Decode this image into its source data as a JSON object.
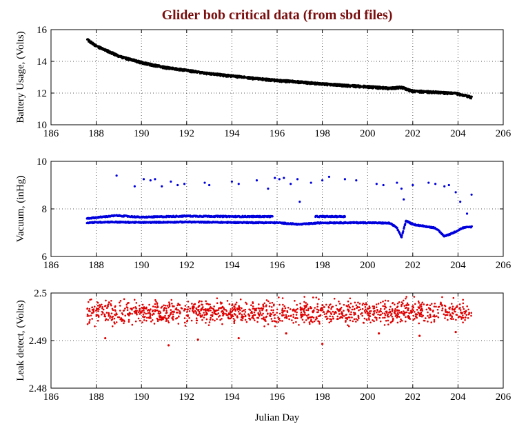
{
  "colors": {
    "title": "#7a0f0f",
    "battery": "#000000",
    "vacuum": "#0000dd",
    "leak": "#e00000",
    "grid": "#555555",
    "axis": "#000000"
  },
  "chart_data": {
    "type": "scatter",
    "title": "Glider bob critical data (from sbd files)",
    "xlabel": "Julian Day",
    "xlim": [
      186,
      206
    ],
    "xticks": [
      186,
      188,
      190,
      192,
      194,
      196,
      198,
      200,
      202,
      204,
      206
    ],
    "grid": true,
    "panels": [
      {
        "id": "battery",
        "ylabel": "Battery Usage, (Volts)",
        "ylim": [
          10,
          16
        ],
        "yticks": [
          10,
          12,
          14,
          16
        ],
        "ytick_labels": [
          "10",
          "12",
          "14",
          "16"
        ],
        "series": [
          {
            "name": "battery",
            "style": "dense dotted band",
            "x": [
              187.6,
              187.8,
              188.0,
              188.3,
              188.7,
              189.0,
              189.5,
              190.0,
              190.5,
              191.0,
              192.0,
              193.0,
              194.0,
              195.0,
              196.0,
              197.0,
              198.0,
              199.0,
              200.0,
              201.0,
              201.5,
              201.8,
              202.0,
              203.0,
              204.0,
              204.6
            ],
            "y": [
              15.4,
              15.2,
              15.0,
              14.8,
              14.55,
              14.35,
              14.15,
              13.95,
              13.8,
              13.65,
              13.45,
              13.25,
              13.1,
              12.95,
              12.82,
              12.72,
              12.6,
              12.5,
              12.42,
              12.32,
              12.4,
              12.22,
              12.15,
              12.08,
              11.98,
              11.75
            ]
          }
        ]
      },
      {
        "id": "vacuum",
        "ylabel": "Vacuum, (inHg)",
        "ylim": [
          6,
          10
        ],
        "yticks": [
          6,
          8,
          10
        ],
        "ytick_labels": [
          "6",
          "8",
          "10"
        ],
        "series": [
          {
            "name": "vacuum-upper-band",
            "style": "dense dotted band",
            "x": [
              187.6,
              188.9,
              190.0,
              192.0,
              194.0,
              195.8
            ],
            "y": [
              7.6,
              7.72,
              7.65,
              7.7,
              7.68,
              7.68
            ]
          },
          {
            "name": "vacuum-upper-band-2",
            "style": "dense dotted band",
            "x": [
              197.7,
              199.0
            ],
            "y": [
              7.68,
              7.68
            ]
          },
          {
            "name": "vacuum-lower-band",
            "style": "dense dotted band",
            "x": [
              187.6,
              188.5,
              190.0,
              192.0,
              194.0,
              196.0,
              197.0,
              198.0,
              200.0,
              201.0,
              201.3,
              201.5,
              201.7,
              202.0,
              203.0,
              203.4,
              203.8,
              204.2,
              204.6
            ],
            "y": [
              7.42,
              7.45,
              7.43,
              7.45,
              7.43,
              7.42,
              7.35,
              7.42,
              7.42,
              7.4,
              7.2,
              6.8,
              7.5,
              7.35,
              7.2,
              6.85,
              7.0,
              7.2,
              7.25
            ]
          },
          {
            "name": "vacuum-outliers",
            "style": "sparse points",
            "x": [
              188.9,
              189.7,
              190.1,
              190.4,
              190.6,
              190.9,
              191.3,
              191.6,
              191.9,
              192.8,
              193.0,
              194.0,
              194.3,
              195.1,
              195.6,
              195.9,
              196.1,
              196.3,
              196.6,
              196.9,
              197.0,
              197.5,
              198.0,
              198.3,
              199.0,
              199.5,
              200.4,
              200.7,
              201.3,
              201.5,
              201.6,
              202.0,
              202.7,
              203.0,
              203.4,
              203.6,
              203.9,
              204.1,
              204.4,
              204.6
            ],
            "y": [
              9.4,
              8.95,
              9.25,
              9.2,
              9.25,
              8.95,
              9.15,
              9.0,
              9.05,
              9.1,
              9.0,
              9.15,
              9.05,
              9.2,
              8.85,
              9.3,
              9.25,
              9.3,
              9.05,
              9.25,
              8.3,
              9.1,
              9.2,
              9.35,
              9.25,
              9.2,
              9.05,
              9.0,
              9.1,
              8.85,
              8.4,
              9.0,
              9.1,
              9.05,
              8.95,
              9.0,
              8.7,
              8.3,
              7.8,
              8.6
            ]
          }
        ]
      },
      {
        "id": "leak",
        "ylabel": "Leak detect, (Volts)",
        "ylim": [
          2.48,
          2.5
        ],
        "yticks": [
          2.48,
          2.49,
          2.5
        ],
        "ytick_labels": [
          "2.48",
          "2.49",
          "2.5"
        ],
        "series": [
          {
            "name": "leak-band",
            "style": "dense dotted band",
            "x": [
              187.6,
              204.6
            ],
            "y": [
              2.496,
              2.496
            ],
            "spread": [
              2.4935,
              2.499
            ]
          },
          {
            "name": "leak-outliers",
            "style": "sparse points",
            "x": [
              188.4,
              191.2,
              192.5,
              194.3,
              196.4,
              198.0,
              200.5,
              202.3,
              203.9
            ],
            "y": [
              2.4905,
              2.489,
              2.4902,
              2.4905,
              2.4915,
              2.4893,
              2.4915,
              2.491,
              2.4918
            ]
          }
        ]
      }
    ]
  }
}
